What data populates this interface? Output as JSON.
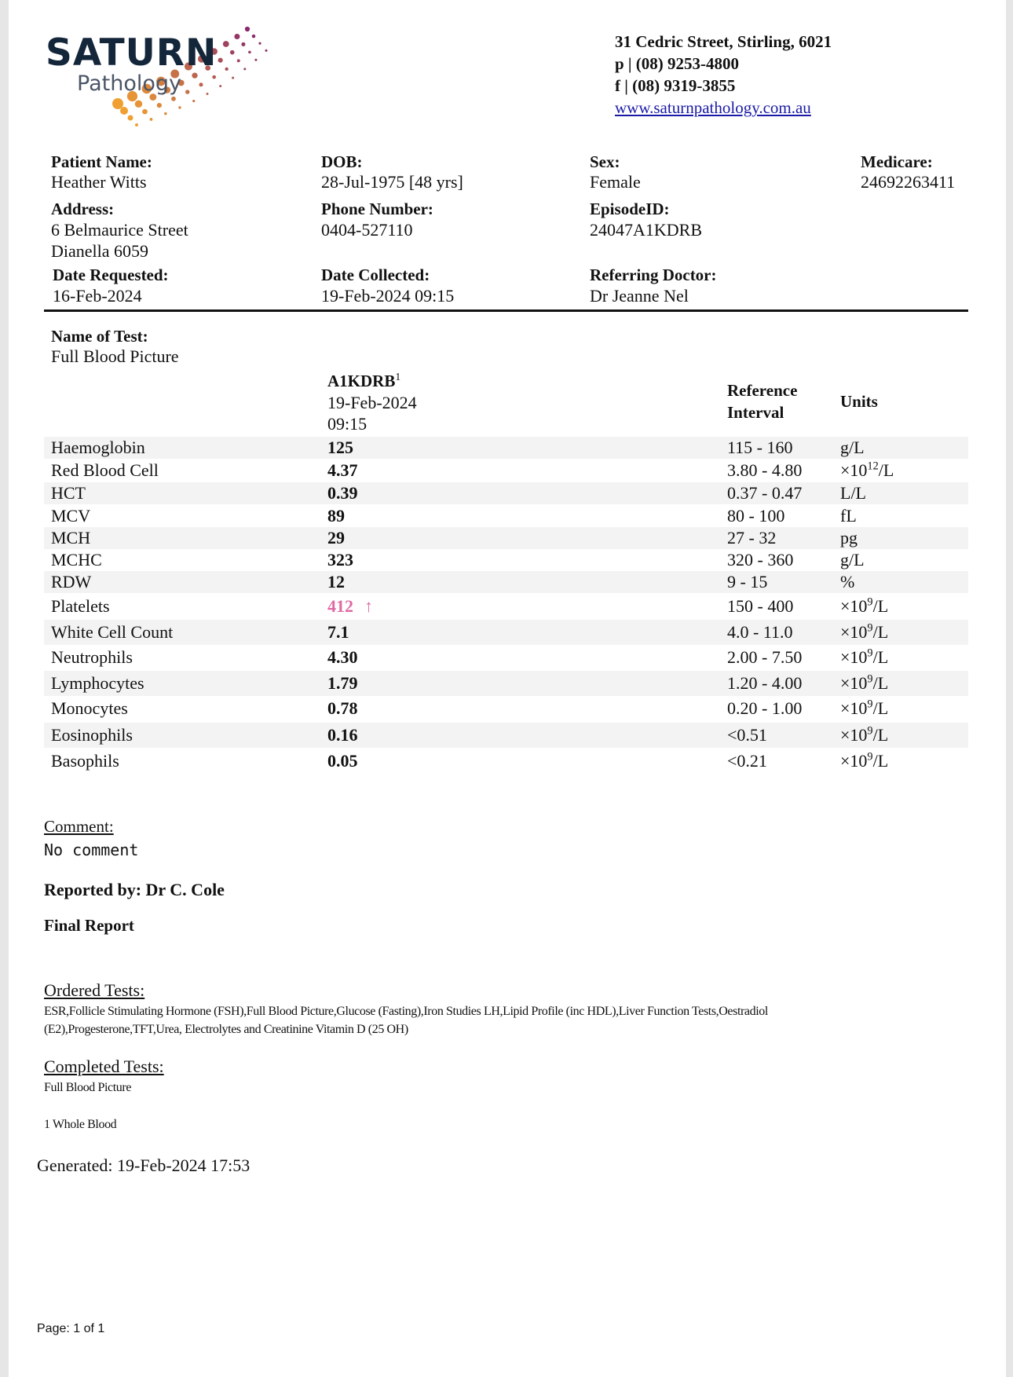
{
  "lab": {
    "logo_name": "SATURN",
    "logo_sub": "Pathology",
    "address": "31 Cedric Street, Stirling, 6021",
    "phone": "p | (08) 9253-4800",
    "fax": "f | (08) 9319-3855",
    "website": "www.saturnpathology.com.au",
    "logo_colors": {
      "text": "#14263a",
      "dots_start": "#f0a030",
      "dots_end": "#8a2a6a"
    }
  },
  "patient": {
    "name_label": "Patient Name:",
    "name": "Heather Witts",
    "dob_label": "DOB:",
    "dob": "28-Jul-1975 [48 yrs]",
    "sex_label": "Sex:",
    "sex": "Female",
    "medicare_label": "Medicare:",
    "medicare": "24692263411",
    "address_label": "Address:",
    "address_line1": "6 Belmaurice Street",
    "address_line2": "Dianella 6059",
    "phone_label": "Phone Number:",
    "phone": "0404-527110",
    "episode_label": "EpisodeID:",
    "episode": "24047A1KDRB",
    "requested_label": "Date Requested:",
    "requested": "16-Feb-2024",
    "collected_label": "Date Collected:",
    "collected": "19-Feb-2024 09:15",
    "doctor_label": "Referring Doctor:",
    "doctor": "Dr Jeanne Nel"
  },
  "test": {
    "name_label": "Name of Test:",
    "name": "Full Blood Picture",
    "col_id": "A1KDRB",
    "col_id_sup": "1",
    "col_date": "19-Feb-2024",
    "col_time": "09:15",
    "ref_header_1": "Reference",
    "ref_header_2": "Interval",
    "units_header": "Units",
    "abnormal_color": "#e06aa6",
    "rows": [
      {
        "name": "Haemoglobin",
        "value": "125",
        "ref": "115 - 160",
        "unit": "g/L",
        "sup": ""
      },
      {
        "name": "Red Blood Cell",
        "value": "4.37",
        "ref": "3.80 - 4.80",
        "unit": "×10",
        "sup": "12",
        "unit_suffix": "/L"
      },
      {
        "name": "HCT",
        "value": "0.39",
        "ref": "0.37 - 0.47",
        "unit": "L/L",
        "sup": ""
      },
      {
        "name": "MCV",
        "value": "89",
        "ref": "80 - 100",
        "unit": "fL",
        "sup": ""
      },
      {
        "name": "MCH",
        "value": "29",
        "ref": "27 - 32",
        "unit": "pg",
        "sup": ""
      },
      {
        "name": "MCHC",
        "value": "323",
        "ref": "320 - 360",
        "unit": "g/L",
        "sup": ""
      },
      {
        "name": "RDW",
        "value": "12",
        "ref": "9 - 15",
        "unit": "%",
        "sup": ""
      },
      {
        "name": "Platelets",
        "value": "412",
        "flag": "↑",
        "abnormal": true,
        "ref": "150 - 400",
        "unit": "×10",
        "sup": "9",
        "unit_suffix": "/L"
      },
      {
        "name": "White Cell Count",
        "value": "7.1",
        "ref": "4.0 - 11.0",
        "unit": "×10",
        "sup": "9",
        "unit_suffix": "/L"
      },
      {
        "name": "Neutrophils",
        "value": "4.30",
        "ref": "2.00 - 7.50",
        "unit": "×10",
        "sup": "9",
        "unit_suffix": "/L"
      },
      {
        "name": "Lymphocytes",
        "value": "1.79",
        "ref": "1.20 - 4.00",
        "unit": "×10",
        "sup": "9",
        "unit_suffix": "/L"
      },
      {
        "name": "Monocytes",
        "value": "0.78",
        "ref": "0.20 - 1.00",
        "unit": "×10",
        "sup": "9",
        "unit_suffix": "/L"
      },
      {
        "name": "Eosinophils",
        "value": "0.16",
        "ref": "<0.51",
        "unit": "×10",
        "sup": "9",
        "unit_suffix": "/L"
      },
      {
        "name": "Basophils",
        "value": "0.05",
        "ref": "<0.21",
        "unit": "×10",
        "sup": "9",
        "unit_suffix": "/L"
      }
    ]
  },
  "footer": {
    "comment_label": "Comment:",
    "comment": "No comment",
    "reported_by": "Reported by: Dr C. Cole",
    "status": "Final Report",
    "ordered_label": "Ordered Tests:",
    "ordered_line1": "ESR,Follicle Stimulating Hormone (FSH),Full Blood Picture,Glucose (Fasting),Iron Studies LH,Lipid Profile (inc HDL),Liver Function Tests,Oestradiol",
    "ordered_line2": "(E2),Progesterone,TFT,Urea, Electrolytes and Creatinine Vitamin D (25 OH)",
    "completed_label": "Completed Tests:",
    "completed": "Full Blood Picture",
    "specimen_note": "1 Whole Blood",
    "generated": "Generated: 19-Feb-2024 17:53",
    "page": "Page: 1 of 1"
  }
}
